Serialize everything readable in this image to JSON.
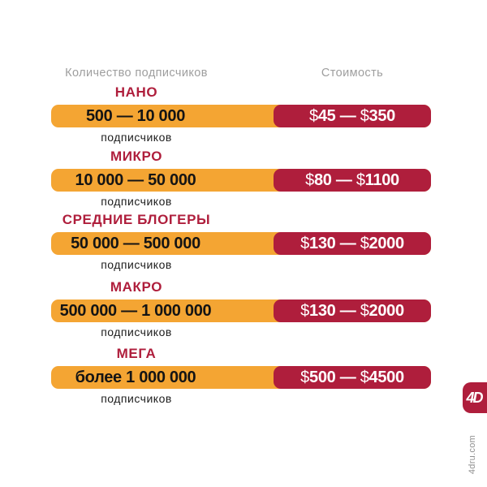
{
  "columns": {
    "left_header": "Количество подписчиков",
    "right_header": "Стоимость"
  },
  "tiers": [
    {
      "name": "НАНО",
      "range": "500 — 10 000",
      "unit": "подписчиков",
      "price": "$45 — $350"
    },
    {
      "name": "МИКРО",
      "range": "10 000 — 50 000",
      "unit": "подписчиков",
      "price": "$80 — $1100"
    },
    {
      "name": "СРЕДНИЕ БЛОГЕРЫ",
      "range": "50 000 — 500 000",
      "unit": "подписчиков",
      "price": "$130 — $2000"
    },
    {
      "name": "МАКРО",
      "range": "500 000 — 1 000 000",
      "unit": "подписчиков",
      "price": "$130 — $2000"
    },
    {
      "name": "МЕГА",
      "range": "более 1 000 000",
      "unit": "подписчиков",
      "price": "$500 — $4500"
    }
  ],
  "branding": {
    "logo_text": "4D",
    "website": "4dru.com"
  },
  "colors": {
    "amber": "#F4A533",
    "crimson": "#AF1E3C",
    "header_gray": "#9E9E9E",
    "text_dark": "#141414",
    "white": "#FFFFFF"
  },
  "chart_data": {
    "type": "table",
    "title": "",
    "columns": [
      "Количество подписчиков",
      "Стоимость"
    ],
    "rows": [
      {
        "tier": "НАНО",
        "subscribers": "500 — 10 000",
        "subscribers_min": 500,
        "subscribers_max": 10000,
        "price": "$45 — $350",
        "price_min_usd": 45,
        "price_max_usd": 350
      },
      {
        "tier": "МИКРО",
        "subscribers": "10 000 — 50 000",
        "subscribers_min": 10000,
        "subscribers_max": 50000,
        "price": "$80 — $1100",
        "price_min_usd": 80,
        "price_max_usd": 1100
      },
      {
        "tier": "СРЕДНИЕ БЛОГЕРЫ",
        "subscribers": "50 000 — 500 000",
        "subscribers_min": 50000,
        "subscribers_max": 500000,
        "price": "$130 — $2000",
        "price_min_usd": 130,
        "price_max_usd": 2000
      },
      {
        "tier": "МАКРО",
        "subscribers": "500 000 — 1 000 000",
        "subscribers_min": 500000,
        "subscribers_max": 1000000,
        "price": "$130 — $2000",
        "price_min_usd": 130,
        "price_max_usd": 2000
      },
      {
        "tier": "МЕГА",
        "subscribers": "более 1 000 000",
        "subscribers_min": 1000000,
        "subscribers_max": null,
        "price": "$500 — $4500",
        "price_min_usd": 500,
        "price_max_usd": 4500
      }
    ]
  }
}
